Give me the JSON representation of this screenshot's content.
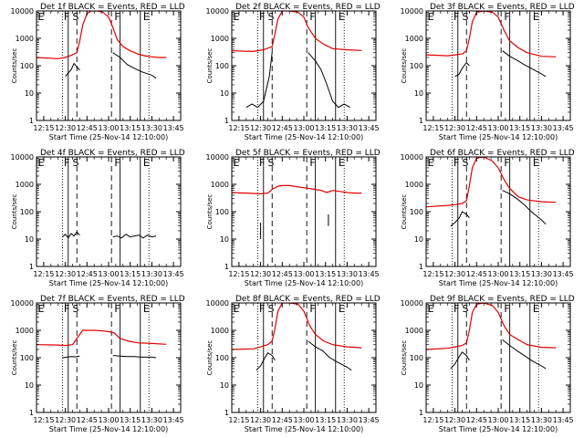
{
  "figure": {
    "background": "#ffffff",
    "colors": {
      "events": "#000000",
      "lld": "#e00000",
      "axis": "#000000"
    }
  },
  "common": {
    "xlabel": "Start Time (25-Nov-14 12:10:00)",
    "ylabel": "Counts/sec",
    "x_tick_labels": [
      "12:15",
      "12:30",
      "12:45",
      "13:00",
      "13:15",
      "13:30",
      "13:45"
    ],
    "y_tick_labels": [
      "1",
      "10",
      "100",
      "1000",
      "10000"
    ],
    "phase_labels": [
      "E",
      "F",
      "S",
      "F",
      "E"
    ],
    "phase_lines": [
      {
        "time": "12:28",
        "style": "dotted"
      },
      {
        "time": "12:32",
        "style": "solid"
      },
      {
        "time": "12:38",
        "style": "dashed"
      },
      {
        "time": "13:02",
        "style": "dashed"
      },
      {
        "time": "13:08",
        "style": "solid"
      },
      {
        "time": "13:22",
        "style": "solid"
      },
      {
        "time": "13:28",
        "style": "dotted"
      }
    ],
    "x_range": [
      "12:10",
      "13:50"
    ],
    "y_range": [
      1,
      10000
    ],
    "y_scale": "log"
  },
  "chart_data": [
    {
      "type": "line",
      "title": "Det 1f BLACK = Events, RED = LLD",
      "xlabel": "Start Time (25-Nov-14 12:10:00)",
      "ylabel": "Counts/sec",
      "series": [
        {
          "name": "Events",
          "color": "#000000",
          "segments": [
            {
              "x": [
                "12:30",
                "12:32",
                "12:34",
                "12:36",
                "12:38",
                "12:40"
              ],
              "y": [
                40,
                55,
                70,
                120,
                90,
                70
              ]
            },
            {
              "x": [
                "13:03",
                "13:08",
                "13:13",
                "13:18",
                "13:23",
                "13:30",
                "13:33"
              ],
              "y": [
                300,
                200,
                110,
                80,
                60,
                45,
                35
              ]
            }
          ]
        },
        {
          "name": "LLD",
          "color": "#e00000",
          "segments": [
            {
              "x": [
                "12:10",
                "12:25",
                "12:30",
                "12:35",
                "12:38",
                "12:40",
                "12:42",
                "12:45",
                "12:48",
                "12:52",
                "12:56",
                "13:00",
                "13:03",
                "13:06",
                "13:10",
                "13:15",
                "13:20",
                "13:25",
                "13:30",
                "13:35",
                "13:40"
              ],
              "y": [
                200,
                180,
                200,
                250,
                300,
                800,
                3000,
                8000,
                10000,
                10000,
                9000,
                6000,
                2500,
                900,
                500,
                350,
                270,
                230,
                210,
                200,
                200
              ]
            }
          ]
        }
      ]
    },
    {
      "type": "line",
      "title": "Det 2f BLACK = Events, RED = LLD",
      "xlabel": "Start Time (25-Nov-14 12:10:00)",
      "ylabel": "Counts/sec",
      "series": [
        {
          "name": "Events",
          "color": "#000000",
          "segments": [
            {
              "x": [
                "12:20",
                "12:24",
                "12:28",
                "12:32",
                "12:36",
                "12:38"
              ],
              "y": [
                3,
                4,
                3,
                5,
                40,
                300
              ]
            },
            {
              "x": [
                "13:03",
                "13:08",
                "13:12",
                "13:16",
                "13:20",
                "13:24",
                "13:28",
                "13:32"
              ],
              "y": [
                300,
                150,
                70,
                20,
                5,
                3,
                4,
                3
              ]
            }
          ]
        },
        {
          "name": "LLD",
          "color": "#e00000",
          "segments": [
            {
              "x": [
                "12:10",
                "12:25",
                "12:32",
                "12:38",
                "12:40",
                "12:42",
                "12:45",
                "12:50",
                "12:56",
                "13:00",
                "13:03",
                "13:08",
                "13:14",
                "13:20",
                "13:30",
                "13:40"
              ],
              "y": [
                350,
                330,
                380,
                500,
                1500,
                5000,
                10000,
                10000,
                9000,
                6000,
                2500,
                1000,
                600,
                420,
                380,
                360
              ]
            }
          ]
        }
      ]
    },
    {
      "type": "line",
      "title": "Det 3f BLACK = Events, RED = LLD",
      "xlabel": "Start Time (25-Nov-14 12:10:00)",
      "ylabel": "Counts/sec",
      "series": [
        {
          "name": "Events",
          "color": "#000000",
          "segments": [
            {
              "x": [
                "12:30",
                "12:33",
                "12:35",
                "12:38",
                "12:40"
              ],
              "y": [
                40,
                50,
                80,
                130,
                100
              ]
            },
            {
              "x": [
                "13:03",
                "13:08",
                "13:13",
                "13:18",
                "13:23",
                "13:30",
                "13:33"
              ],
              "y": [
                350,
                220,
                160,
                110,
                80,
                50,
                40
              ]
            }
          ]
        },
        {
          "name": "LLD",
          "color": "#e00000",
          "segments": [
            {
              "x": [
                "12:10",
                "12:25",
                "12:30",
                "12:35",
                "12:38",
                "12:40",
                "12:42",
                "12:45",
                "12:50",
                "12:56",
                "13:00",
                "13:04",
                "13:08",
                "13:14",
                "13:20",
                "13:30",
                "13:40"
              ],
              "y": [
                250,
                230,
                250,
                270,
                350,
                1000,
                4000,
                9000,
                10000,
                9000,
                6000,
                2000,
                800,
                450,
                300,
                220,
                210
              ]
            }
          ]
        }
      ]
    },
    {
      "type": "line",
      "title": "Det 4f BLACK = Events, RED = LLD",
      "xlabel": "Start Time (25-Nov-14 12:10:00)",
      "ylabel": "Counts/sec",
      "series": [
        {
          "name": "Events",
          "color": "#000000",
          "segments": [
            {
              "x": [
                "12:28",
                "12:30",
                "12:32",
                "12:34",
                "12:36",
                "12:38",
                "12:40"
              ],
              "y": [
                12,
                15,
                11,
                16,
                13,
                18,
                14
              ]
            },
            {
              "x": [
                "13:03",
                "13:06",
                "13:09",
                "13:12",
                "13:15",
                "13:18",
                "13:21",
                "13:24",
                "13:27",
                "13:30",
                "13:33"
              ],
              "y": [
                12,
                13,
                11,
                15,
                12,
                13,
                14,
                11,
                14,
                12,
                13
              ]
            }
          ]
        }
      ]
    },
    {
      "type": "line",
      "title": "Det 5f BLACK = Events, RED = LLD",
      "xlabel": "Start Time (25-Nov-14 12:10:00)",
      "ylabel": "Counts/sec",
      "series": [
        {
          "name": "Events",
          "color": "#000000",
          "segments": [
            {
              "x": [
                "12:30",
                "12:30"
              ],
              "y": [
                10,
                40
              ]
            },
            {
              "x": [
                "13:17",
                "13:17"
              ],
              "y": [
                30,
                80
              ]
            }
          ]
        },
        {
          "name": "LLD",
          "color": "#e00000",
          "segments": [
            {
              "x": [
                "12:10",
                "12:20",
                "12:30",
                "12:35",
                "12:38",
                "12:42",
                "12:45",
                "12:50",
                "12:56",
                "13:00",
                "13:04",
                "13:08",
                "13:12",
                "13:16",
                "13:20",
                "13:25",
                "13:30",
                "13:35",
                "13:40"
              ],
              "y": [
                500,
                480,
                450,
                480,
                650,
                850,
                900,
                900,
                800,
                750,
                700,
                650,
                600,
                500,
                600,
                550,
                500,
                480,
                480
              ]
            }
          ]
        }
      ]
    },
    {
      "type": "line",
      "title": "Det 6f BLACK = Events, RED = LLD",
      "xlabel": "Start Time (25-Nov-14 12:10:00)",
      "ylabel": "Counts/sec",
      "series": [
        {
          "name": "Events",
          "color": "#000000",
          "segments": [
            {
              "x": [
                "12:27",
                "12:30",
                "12:33",
                "12:35",
                "12:38",
                "12:40"
              ],
              "y": [
                30,
                40,
                60,
                100,
                80,
                60
              ]
            },
            {
              "x": [
                "13:03",
                "13:08",
                "13:13",
                "13:18",
                "13:23",
                "13:30",
                "13:33"
              ],
              "y": [
                600,
                450,
                300,
                180,
                100,
                50,
                35
              ]
            }
          ]
        },
        {
          "name": "LLD",
          "color": "#e00000",
          "segments": [
            {
              "x": [
                "12:10",
                "12:25",
                "12:30",
                "12:35",
                "12:38",
                "12:40",
                "12:42",
                "12:45",
                "12:50",
                "12:56",
                "13:00",
                "13:04",
                "13:08",
                "13:14",
                "13:20",
                "13:30",
                "13:40"
              ],
              "y": [
                150,
                170,
                180,
                200,
                250,
                900,
                4000,
                9000,
                10000,
                7000,
                4000,
                1500,
                700,
                350,
                270,
                230,
                220
              ]
            }
          ]
        }
      ]
    },
    {
      "type": "line",
      "title": "Det 7f BLACK = Events, RED = LLD",
      "xlabel": "Start Time (25-Nov-14 12:10:00)",
      "ylabel": "Counts/sec",
      "series": [
        {
          "name": "Events",
          "color": "#000000",
          "segments": [
            {
              "x": [
                "12:28",
                "12:31",
                "12:34",
                "12:37",
                "12:40"
              ],
              "y": [
                100,
                105,
                110,
                108,
                115
              ]
            },
            {
              "x": [
                "13:03",
                "13:08",
                "13:13",
                "13:18",
                "13:23",
                "13:30",
                "13:33"
              ],
              "y": [
                120,
                115,
                110,
                110,
                105,
                105,
                100
              ]
            }
          ]
        },
        {
          "name": "LLD",
          "color": "#e00000",
          "segments": [
            {
              "x": [
                "12:10",
                "12:25",
                "12:30",
                "12:35",
                "12:38",
                "12:42",
                "12:45",
                "12:50",
                "12:56",
                "13:00",
                "13:04",
                "13:08",
                "13:14",
                "13:20",
                "13:30",
                "13:40"
              ],
              "y": [
                300,
                290,
                280,
                300,
                500,
                1000,
                1000,
                1000,
                950,
                900,
                800,
                500,
                400,
                350,
                330,
                310
              ]
            }
          ]
        }
      ]
    },
    {
      "type": "line",
      "title": "Det 8f BLACK = Events, RED = LLD",
      "xlabel": "Start Time (25-Nov-14 12:10:00)",
      "ylabel": "Counts/sec",
      "series": [
        {
          "name": "Events",
          "color": "#000000",
          "segments": [
            {
              "x": [
                "12:27",
                "12:30",
                "12:33",
                "12:35",
                "12:38",
                "12:40"
              ],
              "y": [
                35,
                50,
                100,
                150,
                120,
                80
              ]
            },
            {
              "x": [
                "13:03",
                "13:08",
                "13:13",
                "13:18",
                "13:23",
                "13:30",
                "13:33"
              ],
              "y": [
                400,
                250,
                180,
                100,
                70,
                45,
                35
              ]
            }
          ]
        },
        {
          "name": "LLD",
          "color": "#e00000",
          "segments": [
            {
              "x": [
                "12:10",
                "12:25",
                "12:30",
                "12:35",
                "12:38",
                "12:40",
                "12:42",
                "12:45",
                "12:50",
                "12:56",
                "13:00",
                "13:04",
                "13:08",
                "13:14",
                "13:20",
                "13:30",
                "13:40"
              ],
              "y": [
                200,
                210,
                250,
                300,
                400,
                1200,
                5000,
                10000,
                10000,
                9000,
                5000,
                1500,
                700,
                400,
                300,
                250,
                230
              ]
            }
          ]
        }
      ]
    },
    {
      "type": "line",
      "title": "Det 9f BLACK = Events, RED = LLD",
      "xlabel": "Start Time (25-Nov-14 12:10:00)",
      "ylabel": "Counts/sec",
      "series": [
        {
          "name": "Events",
          "color": "#000000",
          "segments": [
            {
              "x": [
                "12:27",
                "12:30",
                "12:33",
                "12:35",
                "12:38",
                "12:40"
              ],
              "y": [
                40,
                60,
                110,
                160,
                120,
                80
              ]
            },
            {
              "x": [
                "13:03",
                "13:08",
                "13:13",
                "13:18",
                "13:23",
                "13:30",
                "13:33"
              ],
              "y": [
                450,
                280,
                180,
                120,
                80,
                50,
                40
              ]
            }
          ]
        },
        {
          "name": "LLD",
          "color": "#e00000",
          "segments": [
            {
              "x": [
                "12:10",
                "12:25",
                "12:30",
                "12:35",
                "12:38",
                "12:40",
                "12:42",
                "12:45",
                "12:50",
                "12:56",
                "13:00",
                "13:04",
                "13:08",
                "13:14",
                "13:20",
                "13:30",
                "13:40"
              ],
              "y": [
                200,
                220,
                250,
                280,
                350,
                1000,
                4500,
                9000,
                10000,
                8000,
                4500,
                1500,
                700,
                450,
                300,
                240,
                230
              ]
            }
          ]
        }
      ]
    }
  ]
}
